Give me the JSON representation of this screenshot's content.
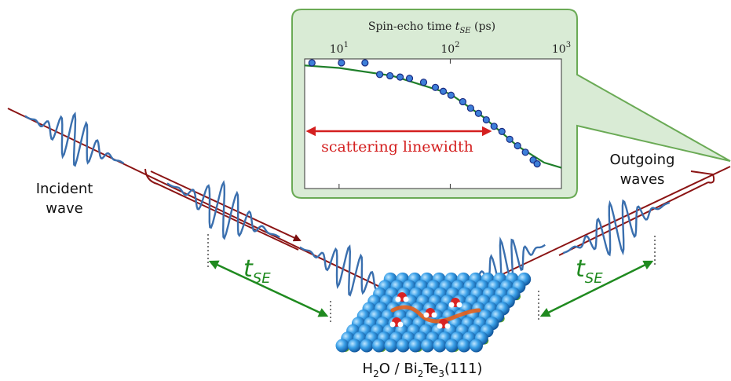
{
  "inset": {
    "type": "scatter",
    "x_label": {
      "text": "Spin-echo time",
      "symbol": "t",
      "subscript": "SE",
      "unit": "(ps)"
    },
    "xscale": "log",
    "xlim": [
      4.9,
      1000
    ],
    "ylim": [
      0,
      1
    ],
    "xticks": [
      {
        "value": 10,
        "label": "10",
        "exponent": "1"
      },
      {
        "value": 100,
        "label": "10",
        "exponent": "2"
      },
      {
        "value": 1000,
        "label": "10",
        "exponent": "3"
      }
    ],
    "points": {
      "color": "#3d7fd9",
      "x": [
        5.7,
        10.5,
        17.1,
        23.2,
        28.7,
        35.4,
        43.0,
        57.6,
        73.5,
        86.5,
        101.6,
        129.7,
        152.5,
        179.5,
        210.9,
        247.9,
        291.6,
        342.8,
        403.5,
        474.2,
        557.2,
        605.3
      ],
      "values": [
        0.97,
        0.97,
        0.97,
        0.88,
        0.87,
        0.86,
        0.85,
        0.82,
        0.78,
        0.75,
        0.72,
        0.67,
        0.62,
        0.58,
        0.53,
        0.48,
        0.44,
        0.38,
        0.33,
        0.28,
        0.22,
        0.19
      ]
    },
    "fit": {
      "color": "#1f7f2a",
      "x": [
        4.9,
        10,
        30,
        100,
        200,
        400,
        700,
        1000
      ],
      "values": [
        0.95,
        0.93,
        0.87,
        0.73,
        0.55,
        0.33,
        0.2,
        0.16
      ]
    },
    "annotation": {
      "text": "scattering linewidth",
      "color": "#d42020"
    }
  },
  "labels": {
    "incident": [
      "Incident",
      "wave"
    ],
    "outgoing": [
      "Outgoing",
      "waves"
    ],
    "delay": {
      "symbol": "t",
      "subscript": "SE"
    }
  },
  "sample": [
    "H",
    "2",
    "O / Bi",
    "2",
    "Te",
    "3",
    "(111)"
  ]
}
